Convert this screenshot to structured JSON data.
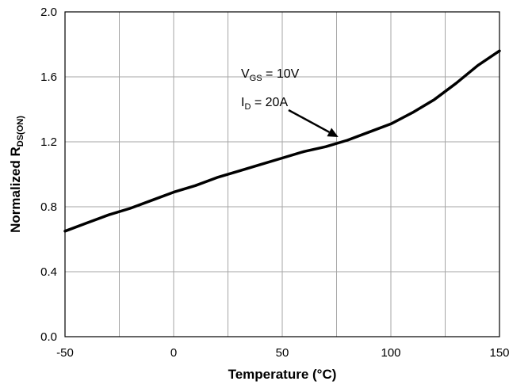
{
  "chart_data": {
    "type": "line",
    "title": "",
    "xlabel": "Temperature (°C)",
    "ylabel": {
      "prefix": "Normalized R",
      "sub": "DS(ON)"
    },
    "xlim": [
      -50,
      150
    ],
    "ylim": [
      0,
      2
    ],
    "x_ticks": [
      -50,
      0,
      50,
      100,
      150
    ],
    "x_tick_labels": [
      "-50",
      "0",
      "50",
      "100",
      "150"
    ],
    "y_ticks": [
      0,
      0.4,
      0.8,
      1.2,
      1.6,
      2.0
    ],
    "y_tick_labels": [
      "0.0",
      "0.4",
      "0.8",
      "1.2",
      "1.6",
      "2.0"
    ],
    "x_minor_gridlines": [
      -25,
      25,
      75,
      125
    ],
    "series": [
      {
        "name": "Normalized RDS(ON)",
        "x": [
          -50,
          -40,
          -30,
          -20,
          -10,
          0,
          10,
          20,
          30,
          40,
          50,
          60,
          70,
          80,
          90,
          100,
          110,
          120,
          130,
          140,
          150
        ],
        "y": [
          0.65,
          0.7,
          0.75,
          0.79,
          0.84,
          0.89,
          0.93,
          0.98,
          1.02,
          1.06,
          1.1,
          1.14,
          1.17,
          1.21,
          1.26,
          1.31,
          1.38,
          1.46,
          1.56,
          1.67,
          1.76
        ]
      }
    ],
    "annotation": {
      "line1": {
        "prefix": "V",
        "sub": "GS",
        "suffix": " = 10V"
      },
      "line2": {
        "prefix": "I",
        "sub": "D",
        "suffix": " = 20A"
      },
      "arrow_to": {
        "x": 78,
        "y": 1.2
      }
    }
  }
}
